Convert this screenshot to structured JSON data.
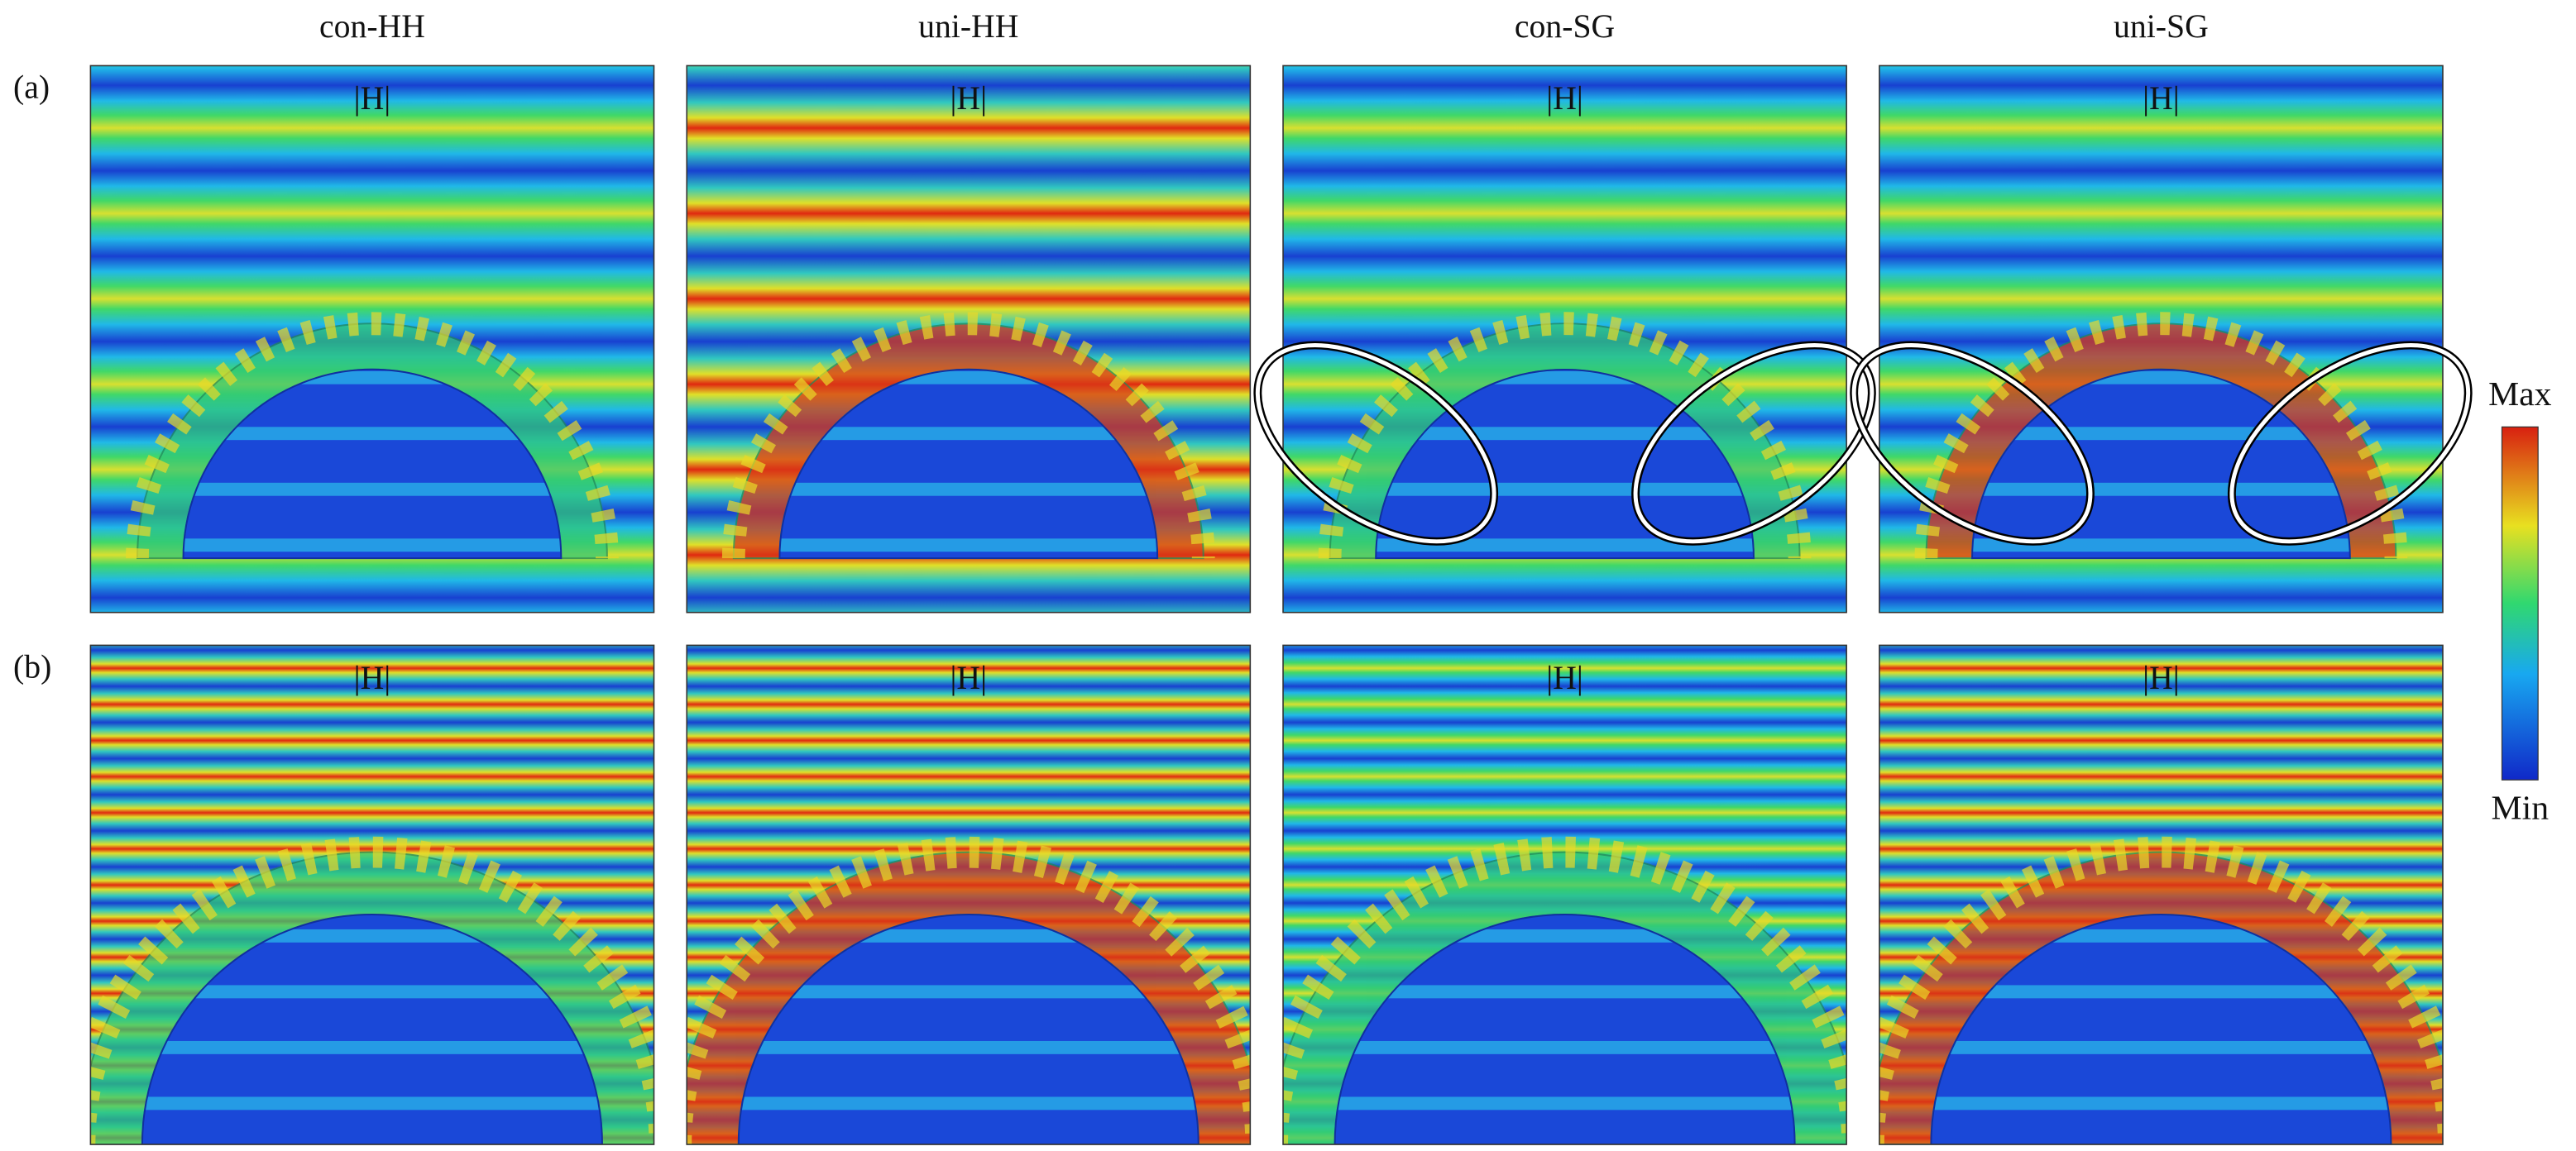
{
  "columns": [
    "con-HH",
    "uni-HH",
    "con-SG",
    "uni-SG"
  ],
  "rows": [
    {
      "label": "(a)",
      "panels": [
        {
          "label": "|H|"
        },
        {
          "label": "|H|"
        },
        {
          "label": "|H|"
        },
        {
          "label": "|H|"
        }
      ]
    },
    {
      "label": "(b)",
      "panels": [
        {
          "label": "|H|"
        },
        {
          "label": "|H|"
        },
        {
          "label": "|H|"
        },
        {
          "label": "|H|"
        }
      ]
    }
  ],
  "colorbar": {
    "max": "Max",
    "min": "Min"
  }
}
